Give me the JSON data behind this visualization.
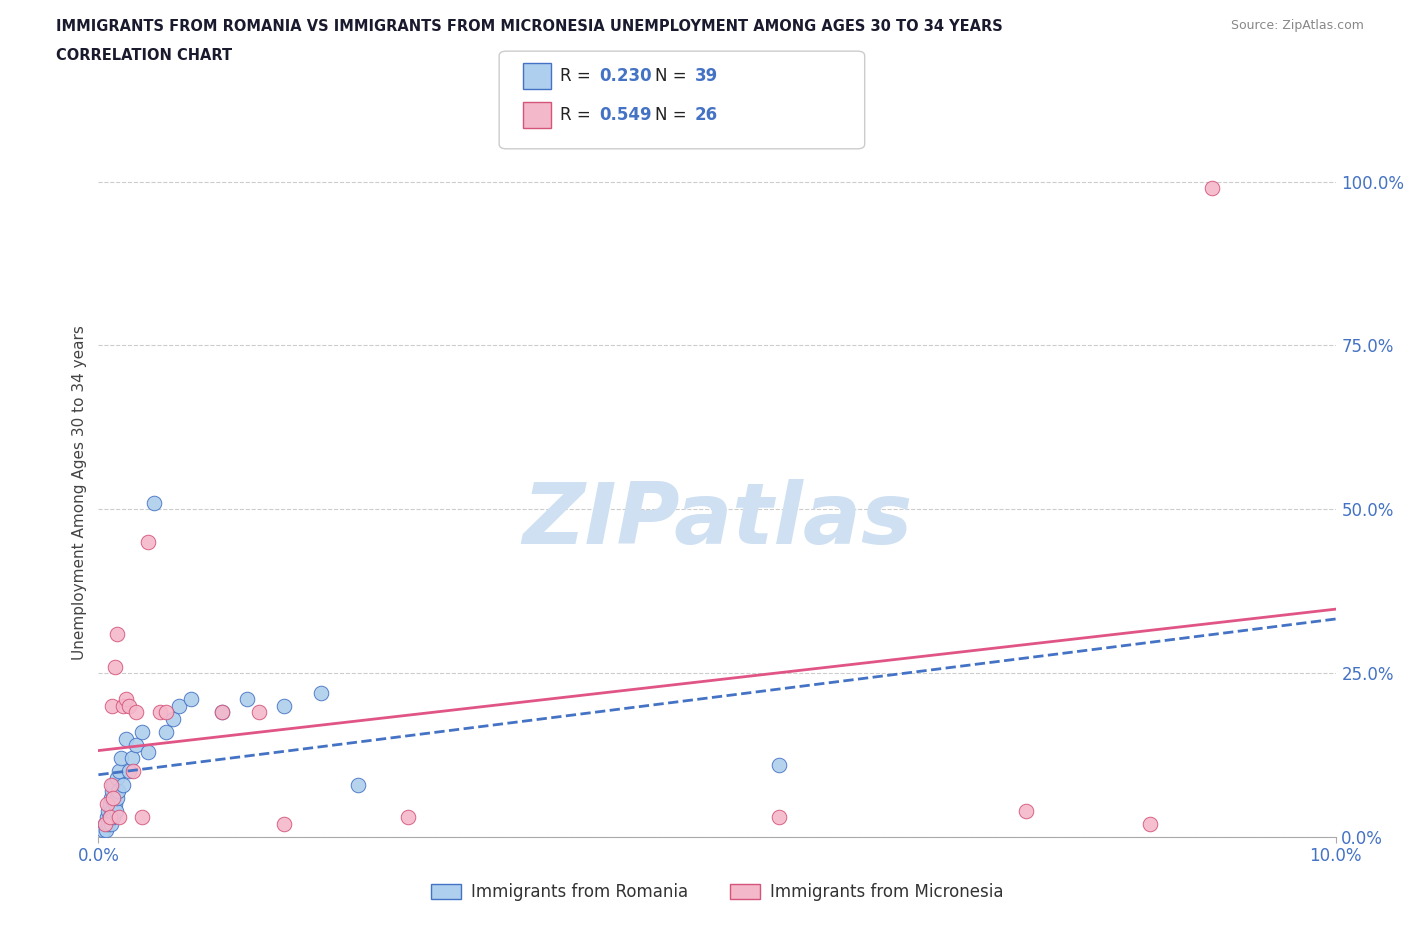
{
  "title_line1": "IMMIGRANTS FROM ROMANIA VS IMMIGRANTS FROM MICRONESIA UNEMPLOYMENT AMONG AGES 30 TO 34 YEARS",
  "title_line2": "CORRELATION CHART",
  "source": "Source: ZipAtlas.com",
  "ylabel": "Unemployment Among Ages 30 to 34 years",
  "xlim": [
    0,
    10
  ],
  "ylim": [
    0,
    105
  ],
  "ytick_vals": [
    0,
    25,
    50,
    75,
    100
  ],
  "ytick_labels": [
    "0.0%",
    "25.0%",
    "50.0%",
    "75.0%",
    "100.0%"
  ],
  "xtick_vals": [
    0,
    10
  ],
  "xtick_labels": [
    "0.0%",
    "10.0%"
  ],
  "romania_color": "#aecfed",
  "romania_edge_color": "#4472c4",
  "micronesia_color": "#f4b8cb",
  "micronesia_edge_color": "#d4547a",
  "romania_trend_color": "#4472c4",
  "micronesia_trend_color": "#e05585",
  "axis_label_color": "#4472c4",
  "romania_R": 0.23,
  "romania_N": 39,
  "micronesia_R": 0.549,
  "micronesia_N": 26,
  "romania_label": "Immigrants from Romania",
  "micronesia_label": "Immigrants from Micronesia",
  "text_color": "#1a1a2e",
  "grid_color": "#cccccc",
  "watermark": "ZIPatlas",
  "watermark_color": "#cee0f2",
  "romania_x": [
    0.04,
    0.05,
    0.06,
    0.07,
    0.08,
    0.08,
    0.09,
    0.09,
    0.1,
    0.1,
    0.11,
    0.11,
    0.12,
    0.12,
    0.13,
    0.14,
    0.15,
    0.15,
    0.16,
    0.17,
    0.18,
    0.2,
    0.22,
    0.25,
    0.27,
    0.3,
    0.35,
    0.4,
    0.45,
    0.55,
    0.6,
    0.65,
    0.75,
    1.0,
    1.2,
    1.5,
    1.8,
    2.1,
    5.5
  ],
  "romania_y": [
    1,
    2,
    1,
    3,
    2,
    4,
    3,
    5,
    2,
    6,
    4,
    7,
    3,
    8,
    5,
    4,
    6,
    9,
    7,
    10,
    12,
    8,
    15,
    10,
    12,
    14,
    16,
    13,
    51,
    16,
    18,
    20,
    21,
    19,
    21,
    20,
    22,
    8,
    11
  ],
  "micronesia_x": [
    0.05,
    0.07,
    0.09,
    0.1,
    0.11,
    0.12,
    0.13,
    0.15,
    0.17,
    0.2,
    0.22,
    0.25,
    0.28,
    0.3,
    0.35,
    0.4,
    0.5,
    0.55,
    1.0,
    1.3,
    1.5,
    2.5,
    5.5,
    7.5,
    8.5,
    9.0
  ],
  "micronesia_y": [
    2,
    5,
    3,
    8,
    20,
    6,
    26,
    31,
    3,
    20,
    21,
    20,
    10,
    19,
    3,
    45,
    19,
    19,
    19,
    19,
    2,
    3,
    3,
    4,
    2,
    99
  ]
}
